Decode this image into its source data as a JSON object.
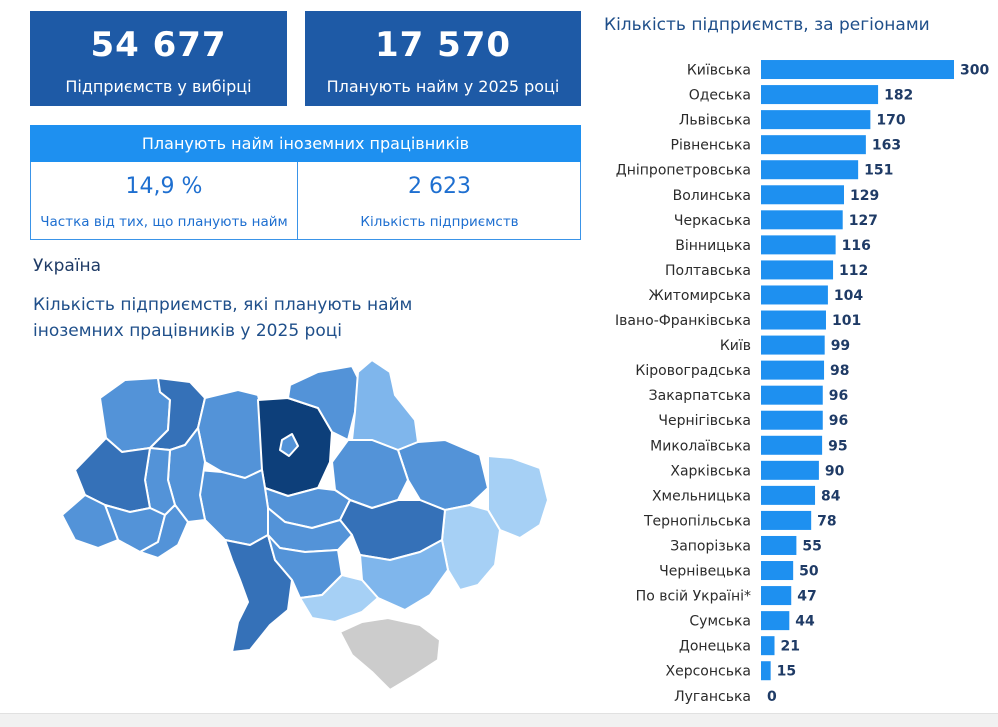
{
  "kpis": [
    {
      "value": "54 677",
      "label": "Підприємств у вибірці"
    },
    {
      "value": "17 570",
      "label": "Планують найм у 2025 році"
    }
  ],
  "foreign": {
    "header": "Планують найм іноземних працівників",
    "share_value": "14,9 %",
    "share_label": "Частка від тих, що планують найм",
    "count_value": "2 623",
    "count_label": "Кількість підприємств"
  },
  "map": {
    "title": "Україна",
    "subtitle": "Кількість підприємств, які планують найм іноземних працівників у 2025 році",
    "colors": {
      "darkest": "#0d3f7a",
      "dark": "#3571b8",
      "mid": "#5393d8",
      "light": "#7fb6ec",
      "lighter": "#a6d0f5",
      "none": "#cccccc"
    }
  },
  "chart_data": {
    "type": "bar",
    "orientation": "horizontal",
    "title": "Кількість підприємств, за регіонами",
    "categories": [
      "Київська",
      "Одеська",
      "Львівська",
      "Рівненська",
      "Дніпропетровська",
      "Волинська",
      "Черкаська",
      "Вінницька",
      "Полтавська",
      "Житомирська",
      "Івано-Франківська",
      "Київ",
      "Кіровоградська",
      "Закарпатська",
      "Чернігівська",
      "Миколаївська",
      "Харківська",
      "Хмельницька",
      "Тернопільська",
      "Запорізька",
      "Чернівецька",
      "По всій Україні*",
      "Сумська",
      "Донецька",
      "Херсонська",
      "Луганська"
    ],
    "values": [
      300,
      182,
      170,
      163,
      151,
      129,
      127,
      116,
      112,
      104,
      101,
      99,
      98,
      96,
      96,
      95,
      90,
      84,
      78,
      55,
      50,
      47,
      44,
      21,
      15,
      0
    ],
    "bar_color": "#1e90f0",
    "xlim": [
      0,
      300
    ]
  }
}
